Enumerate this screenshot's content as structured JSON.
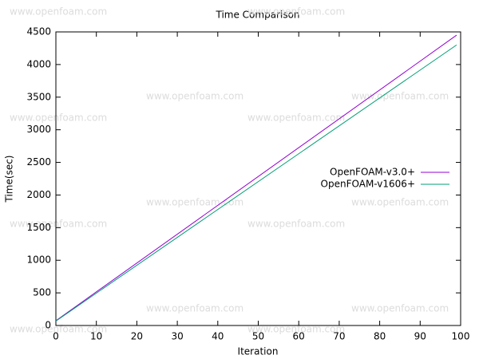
{
  "chart_data": {
    "type": "line",
    "title": "Time Comparison",
    "x_label": "Iteration",
    "y_label": "Time(sec)",
    "watermark": "www.openfoam.com",
    "x": [
      0,
      99
    ],
    "series": [
      {
        "name": "OpenFOAM-v3.0+",
        "color": "#9400d3",
        "values": [
          73,
          4450
        ]
      },
      {
        "name": "OpenFOAM-v1606+",
        "color": "#009e73",
        "values": [
          68,
          4300
        ]
      }
    ],
    "xlim": [
      0,
      100
    ],
    "xticks": [
      0,
      10,
      20,
      30,
      40,
      50,
      60,
      70,
      80,
      90,
      100
    ],
    "ylim": [
      0,
      4500
    ],
    "yticks": [
      0,
      500,
      1000,
      1500,
      2000,
      2500,
      3000,
      3500,
      4000,
      4500
    ],
    "legend": "upper-right",
    "grid": false
  }
}
